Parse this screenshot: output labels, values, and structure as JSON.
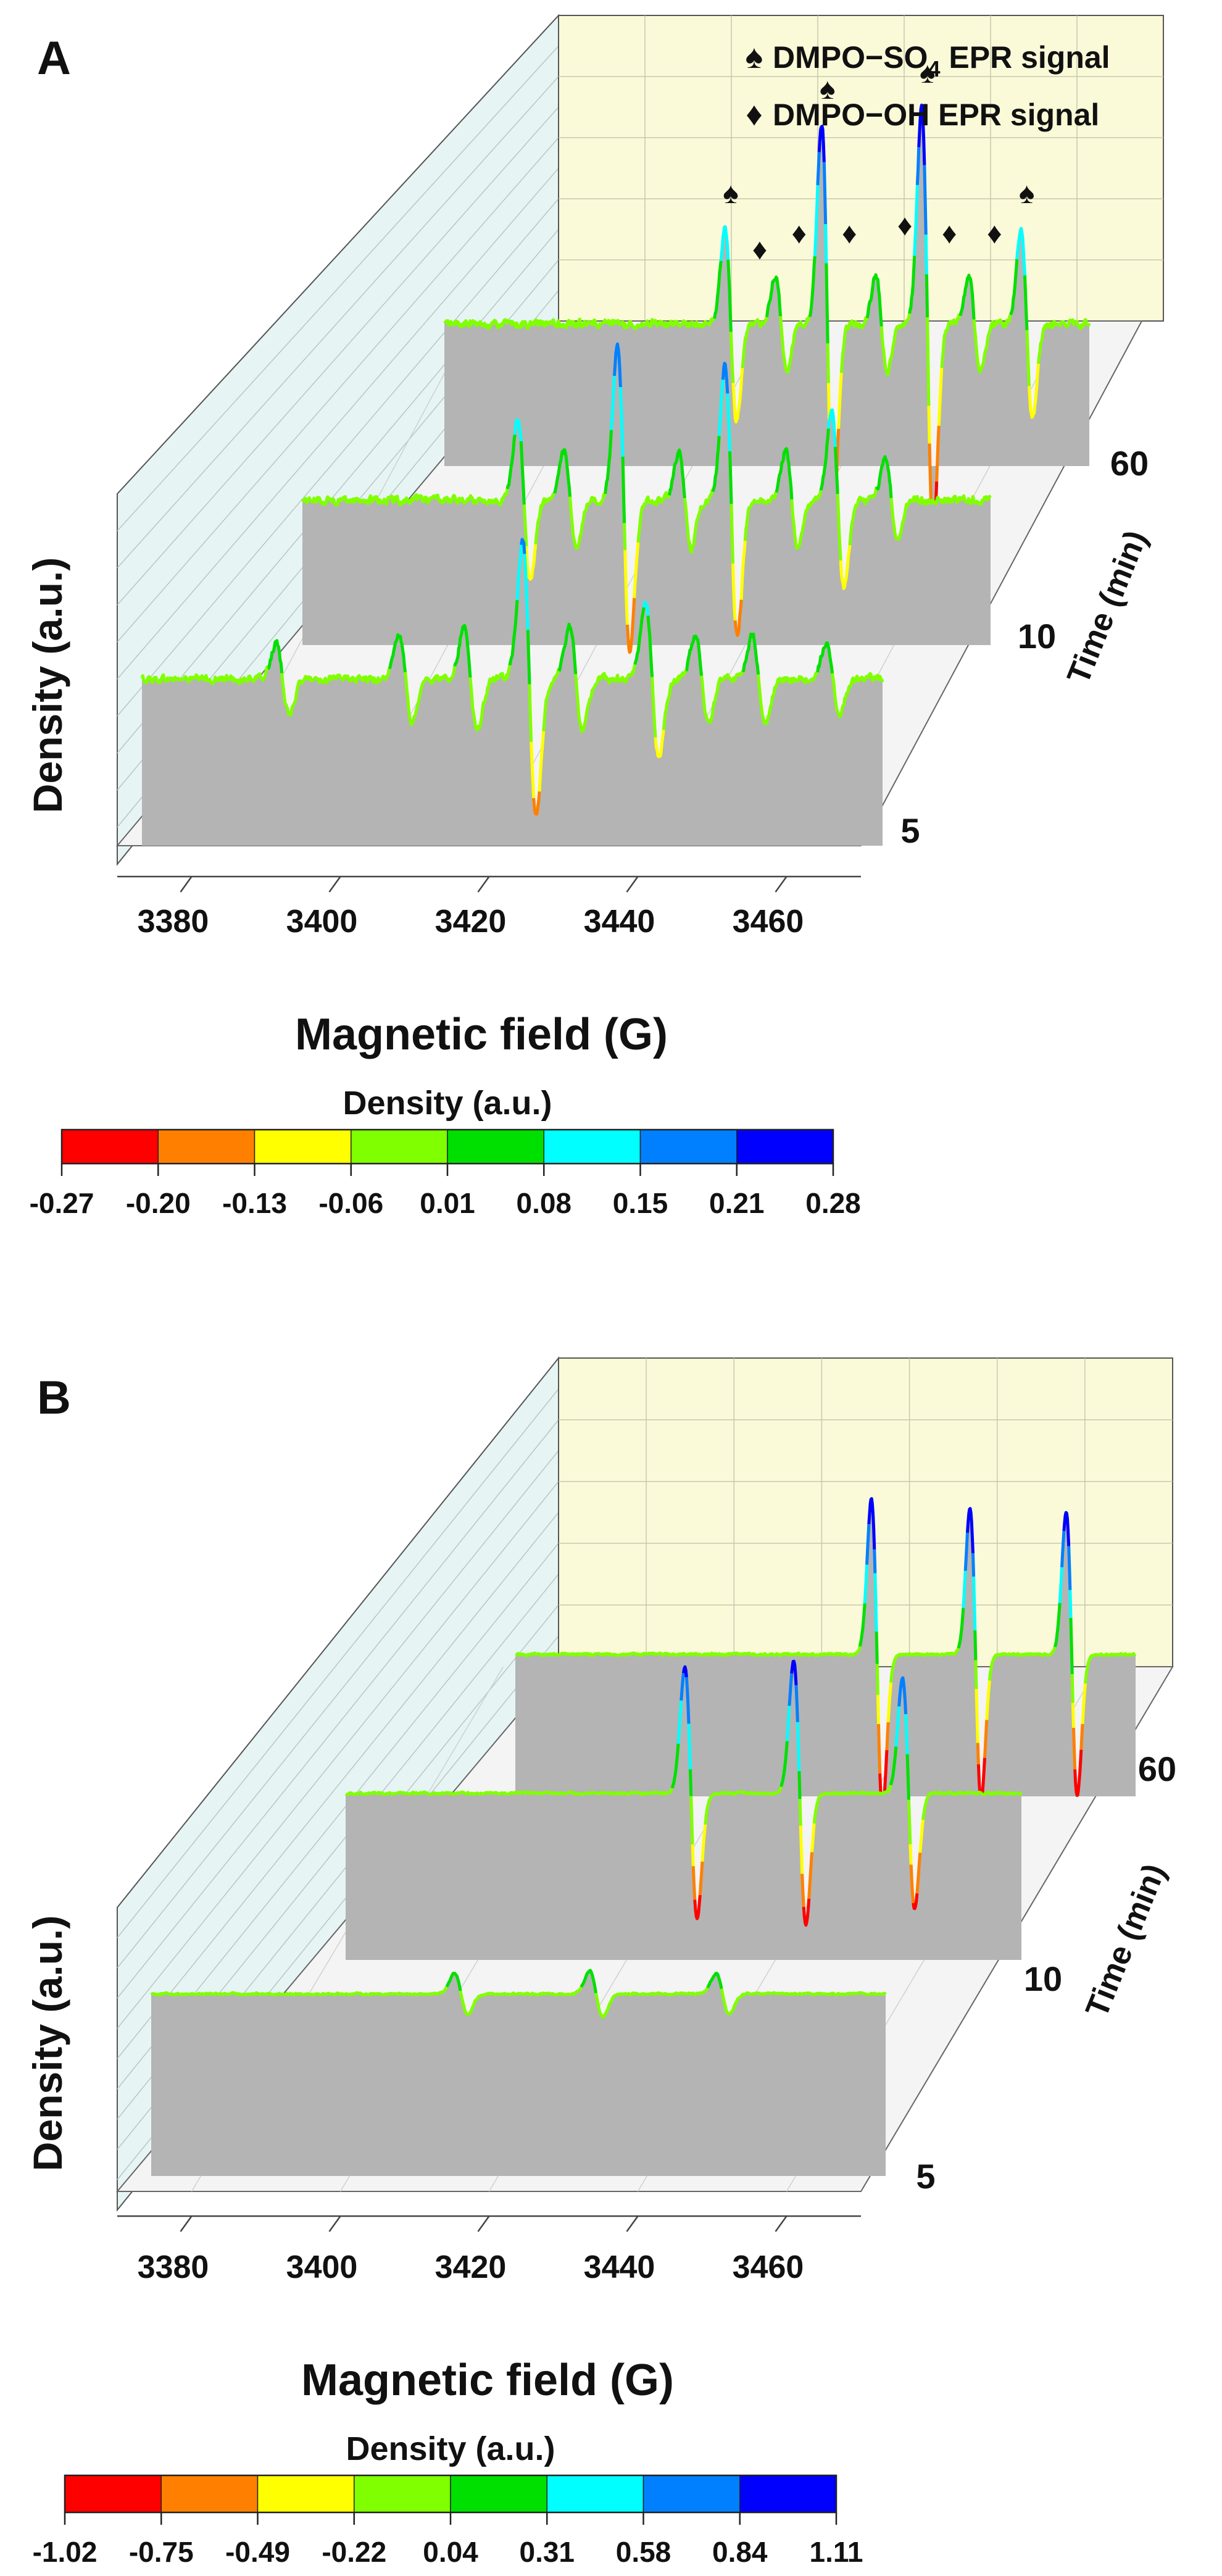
{
  "figure": {
    "description_free": true
  },
  "chart_data": [
    {
      "type": "area",
      "panel_label": "A",
      "title": "",
      "xlabel": "Magnetic field (G)",
      "ylabel": "Density (a.u.)",
      "zlabel": "Time (min)",
      "xlim": [
        3370,
        3470
      ],
      "x_ticks": [
        "3380",
        "3400",
        "3420",
        "3440",
        "3460"
      ],
      "time_ticks": [
        "5",
        "10",
        "60"
      ],
      "grid": true,
      "legend": {
        "position": "top-right",
        "entries": [
          {
            "symbol": "♠",
            "prefix": "DMPO−SO",
            "sub": "4",
            "suffix": " EPR signal"
          },
          {
            "symbol": "♦",
            "prefix": "DMPO−OH EPR signal",
            "sub": "",
            "suffix": ""
          }
        ]
      },
      "colorbar": {
        "title": "Density (a.u.)",
        "ticks": [
          "-0.27",
          "-0.20",
          "-0.13",
          "-0.06",
          "0.01",
          "0.08",
          "0.15",
          "0.21",
          "0.28"
        ],
        "colors": [
          "#ff0000",
          "#ff8000",
          "#ffff00",
          "#80ff00",
          "#00e000",
          "#00ffff",
          "#0080ff",
          "#0000ff"
        ]
      },
      "noise_amplitude": 0.035,
      "series": [
        {
          "name": "5 min",
          "peaks": [
            {
              "x": 3422.3,
              "amp": 0.16
            },
            {
              "x": 3438.9,
              "amp": 0.09
            },
            {
              "x": 3414.4,
              "amp": 0.06
            },
            {
              "x": 3428.6,
              "amp": 0.06
            },
            {
              "x": 3445.6,
              "amp": 0.05
            },
            {
              "x": 3405.6,
              "amp": 0.05
            },
            {
              "x": 3453.3,
              "amp": 0.05
            },
            {
              "x": 3389.0,
              "amp": 0.04
            },
            {
              "x": 3463.3,
              "amp": 0.04
            }
          ]
        },
        {
          "name": "10 min",
          "peaks": [
            {
              "x": 3416.7,
              "amp": 0.19
            },
            {
              "x": 3432.3,
              "amp": 0.17
            },
            {
              "x": 3447.8,
              "amp": 0.11
            },
            {
              "x": 3402.2,
              "amp": 0.1
            },
            {
              "x": 3408.9,
              "amp": 0.06
            },
            {
              "x": 3425.6,
              "amp": 0.06
            },
            {
              "x": 3441.1,
              "amp": 0.06
            },
            {
              "x": 3455.6,
              "amp": 0.05
            }
          ]
        },
        {
          "name": "60 min",
          "peaks": [
            {
              "x": 3429.4,
              "amp": 0.25
            },
            {
              "x": 3444.9,
              "amp": 0.27
            },
            {
              "x": 3414.4,
              "amp": 0.12
            },
            {
              "x": 3460.3,
              "amp": 0.12
            },
            {
              "x": 3422.2,
              "amp": 0.06
            },
            {
              "x": 3437.8,
              "amp": 0.06
            },
            {
              "x": 3452.2,
              "amp": 0.06
            }
          ]
        }
      ],
      "markers": [
        {
          "symbol": "♠",
          "x": 3414.4,
          "amp": 0.12,
          "series": 2
        },
        {
          "symbol": "♠",
          "x": 3429.4,
          "amp": 0.25,
          "series": 2
        },
        {
          "symbol": "♠",
          "x": 3444.9,
          "amp": 0.27,
          "series": 2
        },
        {
          "symbol": "♠",
          "x": 3460.3,
          "amp": 0.12,
          "series": 2
        },
        {
          "symbol": "♦",
          "x": 3418.9,
          "amp": 0.05,
          "series": 2
        },
        {
          "symbol": "♦",
          "x": 3425.0,
          "amp": 0.07,
          "series": 2
        },
        {
          "symbol": "♦",
          "x": 3432.8,
          "amp": 0.07,
          "series": 2
        },
        {
          "symbol": "♦",
          "x": 3441.4,
          "amp": 0.08,
          "series": 2
        },
        {
          "symbol": "♦",
          "x": 3448.3,
          "amp": 0.07,
          "series": 2
        },
        {
          "symbol": "♦",
          "x": 3455.3,
          "amp": 0.07,
          "series": 2
        }
      ]
    },
    {
      "type": "area",
      "panel_label": "B",
      "title": "",
      "xlabel": "Magnetic field (G)",
      "ylabel": "Density (a.u.)",
      "zlabel": "Time (min)",
      "xlim": [
        3370,
        3470
      ],
      "x_ticks": [
        "3380",
        "3400",
        "3420",
        "3440",
        "3460"
      ],
      "time_ticks": [
        "5",
        "10",
        "60"
      ],
      "grid": true,
      "legend": null,
      "colorbar": {
        "title": "Density (a.u.)",
        "ticks": [
          "-1.02",
          "-0.75",
          "-0.49",
          "-0.22",
          "0.04",
          "0.31",
          "0.58",
          "0.84",
          "1.11"
        ],
        "colors": [
          "#ff0000",
          "#ff8000",
          "#ffff00",
          "#80ff00",
          "#00e000",
          "#00ffff",
          "#0080ff",
          "#0000ff"
        ]
      },
      "noise_amplitude": 0.02,
      "series": [
        {
          "name": "5 min",
          "peaks": [
            {
              "x": 3412.2,
              "amp": 0.15
            },
            {
              "x": 3430.6,
              "amp": 0.17
            },
            {
              "x": 3447.8,
              "amp": 0.15
            }
          ]
        },
        {
          "name": "10 min",
          "peaks": [
            {
              "x": 3421.1,
              "amp": 0.89
            },
            {
              "x": 3437.2,
              "amp": 0.93
            },
            {
              "x": 3453.3,
              "amp": 0.81
            }
          ]
        },
        {
          "name": "60 min",
          "peaks": [
            {
              "x": 3428.3,
              "amp": 1.1
            },
            {
              "x": 3444.2,
              "amp": 1.03
            },
            {
              "x": 3459.7,
              "amp": 1.0
            }
          ]
        }
      ],
      "markers": []
    }
  ]
}
